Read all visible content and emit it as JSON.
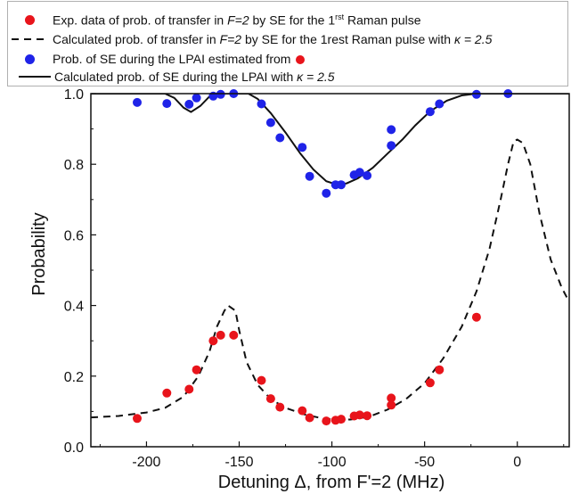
{
  "chart_data": {
    "type": "scatter",
    "xlabel": "Detuning Δ, from F'=2 (MHz)",
    "ylabel": "Probability",
    "xlim": [
      -230,
      28
    ],
    "ylim": [
      0.0,
      1.0
    ],
    "x_ticks": [
      "-200",
      "-150",
      "-100",
      "-50",
      "0"
    ],
    "y_ticks": [
      "0.0",
      "0.2",
      "0.4",
      "0.6",
      "0.8",
      "1.0"
    ],
    "grid": false,
    "legend_position": "top",
    "legend": {
      "row1": {
        "pre": "Exp. data of prob. of transfer in ",
        "italic": "F=2",
        "mid": " by SE for the 1",
        "sup": "rst",
        "post": " Raman pulse"
      },
      "row2": {
        "pre": "Calculated prob. of transfer in ",
        "italic": "F=2",
        "mid": " by SE for the 1rest Raman pulse with  ",
        "kappa": "κ = 2.5"
      },
      "row3": {
        "text": "Prob. of SE during the LPAI estimated from"
      },
      "row4": {
        "text": "Calculated prob. of SE during the LPAI with ",
        "kappa": "κ = 2.5"
      }
    },
    "series": [
      {
        "kind": "scatter",
        "color": "#e8141b",
        "points": [
          [
            -205,
            0.08
          ],
          [
            -189,
            0.152
          ],
          [
            -177,
            0.163
          ],
          [
            -173,
            0.218
          ],
          [
            -164,
            0.3
          ],
          [
            -160,
            0.316
          ],
          [
            -153,
            0.316
          ],
          [
            -138,
            0.188
          ],
          [
            -133,
            0.136
          ],
          [
            -128,
            0.112
          ],
          [
            -116,
            0.102
          ],
          [
            -112,
            0.082
          ],
          [
            -103,
            0.073
          ],
          [
            -98,
            0.075
          ],
          [
            -95,
            0.078
          ],
          [
            -88,
            0.087
          ],
          [
            -85,
            0.09
          ],
          [
            -81,
            0.088
          ],
          [
            -68,
            0.138
          ],
          [
            -68,
            0.118
          ],
          [
            -47,
            0.181
          ],
          [
            -42,
            0.218
          ],
          [
            -22,
            0.367
          ]
        ]
      },
      {
        "kind": "line",
        "dash": true,
        "color": "#111111",
        "points": [
          [
            -230,
            0.083
          ],
          [
            -215,
            0.087
          ],
          [
            -200,
            0.097
          ],
          [
            -190,
            0.11
          ],
          [
            -180,
            0.142
          ],
          [
            -172,
            0.2
          ],
          [
            -166,
            0.27
          ],
          [
            -162,
            0.34
          ],
          [
            -158,
            0.385
          ],
          [
            -156,
            0.4
          ],
          [
            -152,
            0.385
          ],
          [
            -150,
            0.33
          ],
          [
            -146,
            0.24
          ],
          [
            -140,
            0.175
          ],
          [
            -133,
            0.135
          ],
          [
            -125,
            0.11
          ],
          [
            -115,
            0.092
          ],
          [
            -105,
            0.08
          ],
          [
            -98,
            0.076
          ],
          [
            -90,
            0.077
          ],
          [
            -80,
            0.085
          ],
          [
            -70,
            0.105
          ],
          [
            -60,
            0.135
          ],
          [
            -50,
            0.18
          ],
          [
            -40,
            0.25
          ],
          [
            -30,
            0.34
          ],
          [
            -22,
            0.44
          ],
          [
            -15,
            0.56
          ],
          [
            -9,
            0.7
          ],
          [
            -5,
            0.8
          ],
          [
            -2,
            0.865
          ],
          [
            0,
            0.87
          ],
          [
            3,
            0.86
          ],
          [
            7,
            0.8
          ],
          [
            12,
            0.66
          ],
          [
            18,
            0.53
          ],
          [
            24,
            0.45
          ],
          [
            28,
            0.41
          ]
        ]
      },
      {
        "kind": "scatter",
        "color": "#1f23e8",
        "points": [
          [
            -205,
            0.975
          ],
          [
            -189,
            0.972
          ],
          [
            -177,
            0.97
          ],
          [
            -173,
            0.988
          ],
          [
            -164,
            0.993
          ],
          [
            -160,
            0.998
          ],
          [
            -153,
            1.0
          ],
          [
            -138,
            0.971
          ],
          [
            -133,
            0.918
          ],
          [
            -128,
            0.875
          ],
          [
            -116,
            0.848
          ],
          [
            -112,
            0.766
          ],
          [
            -103,
            0.718
          ],
          [
            -98,
            0.742
          ],
          [
            -95,
            0.742
          ],
          [
            -88,
            0.77
          ],
          [
            -85,
            0.777
          ],
          [
            -81,
            0.768
          ],
          [
            -68,
            0.898
          ],
          [
            -68,
            0.853
          ],
          [
            -47,
            0.949
          ],
          [
            -42,
            0.971
          ],
          [
            -22,
            0.998
          ],
          [
            -5,
            1.0
          ]
        ]
      },
      {
        "kind": "line",
        "dash": false,
        "color": "#111111",
        "points": [
          [
            -230,
            1.0
          ],
          [
            -190,
            1.0
          ],
          [
            -185,
            0.988
          ],
          [
            -180,
            0.96
          ],
          [
            -176,
            0.948
          ],
          [
            -171,
            0.965
          ],
          [
            -166,
            0.992
          ],
          [
            -160,
            1.0
          ],
          [
            -145,
            1.0
          ],
          [
            -140,
            0.985
          ],
          [
            -133,
            0.945
          ],
          [
            -125,
            0.89
          ],
          [
            -117,
            0.83
          ],
          [
            -110,
            0.785
          ],
          [
            -103,
            0.752
          ],
          [
            -97,
            0.742
          ],
          [
            -92,
            0.746
          ],
          [
            -86,
            0.76
          ],
          [
            -78,
            0.79
          ],
          [
            -70,
            0.83
          ],
          [
            -62,
            0.87
          ],
          [
            -55,
            0.91
          ],
          [
            -47,
            0.95
          ],
          [
            -38,
            0.98
          ],
          [
            -30,
            0.995
          ],
          [
            -22,
            1.0
          ],
          [
            28,
            1.0
          ]
        ]
      }
    ]
  }
}
